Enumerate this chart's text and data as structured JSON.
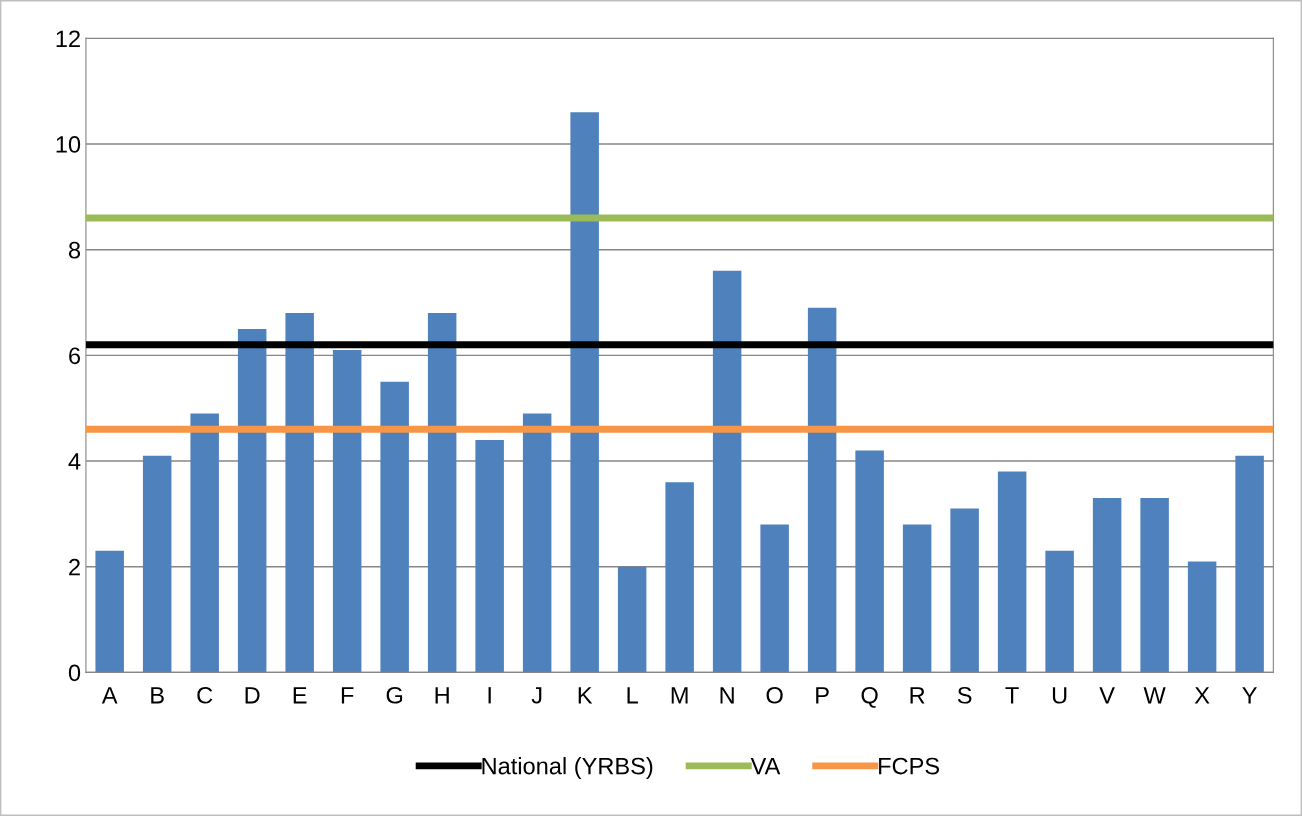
{
  "chart_data": {
    "type": "bar",
    "categories": [
      "A",
      "B",
      "C",
      "D",
      "E",
      "F",
      "G",
      "H",
      "I",
      "J",
      "K",
      "L",
      "M",
      "N",
      "O",
      "P",
      "Q",
      "R",
      "S",
      "T",
      "U",
      "V",
      "W",
      "X",
      "Y"
    ],
    "series": [
      {
        "color": "#4f81bd",
        "values": [
          2.3,
          4.1,
          4.9,
          6.5,
          6.8,
          6.1,
          5.5,
          6.8,
          4.4,
          4.9,
          10.6,
          2.0,
          3.6,
          7.6,
          2.8,
          6.9,
          4.2,
          2.8,
          3.1,
          3.8,
          2.3,
          3.3,
          3.3,
          2.1,
          4.1
        ]
      }
    ],
    "ref_lines": [
      {
        "axis": "y",
        "value": 6.2,
        "label": "National (YRBS)",
        "color": "#000000"
      },
      {
        "axis": "y",
        "value": 8.6,
        "label": "VA",
        "color": "#9bbb59"
      },
      {
        "axis": "y",
        "value": 4.6,
        "label": "FCPS",
        "color": "#f79646"
      }
    ],
    "ylim": [
      0,
      12
    ],
    "yticks": [
      0,
      2,
      4,
      6,
      8,
      10,
      12
    ],
    "grid": "y",
    "legend": "bottom"
  }
}
